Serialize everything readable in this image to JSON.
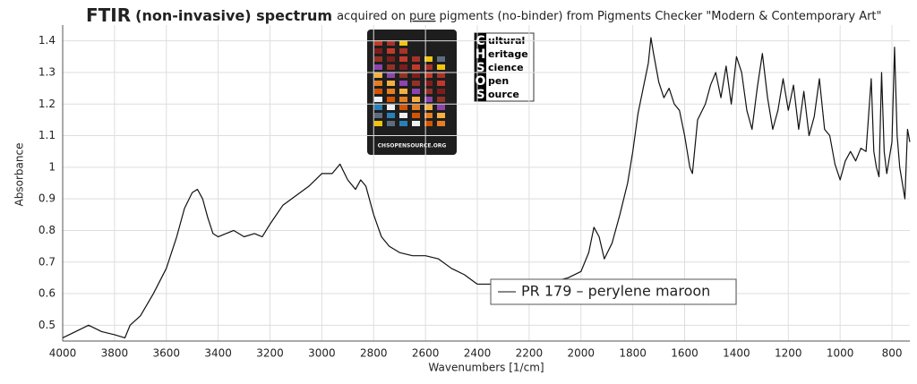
{
  "chart_data": {
    "type": "line",
    "title": [
      "FTIR",
      "(non-invasive) spectrum",
      "acquired on",
      "pure",
      "pigments (no-binder) from Pigments Checker \"Modern & Contemporary Art\""
    ],
    "xlabel": "Wavenumbers [1/cm]",
    "ylabel": "Absorbance",
    "xlim": [
      4000,
      731
    ],
    "ylim": [
      0.45,
      1.45
    ],
    "xticks": [
      4000,
      3800,
      3600,
      3400,
      3200,
      3000,
      2800,
      2600,
      2400,
      2200,
      2000,
      1800,
      1600,
      1400,
      1200,
      1000,
      800
    ],
    "yticks": [
      0.5,
      0.6,
      0.7,
      0.8,
      0.9,
      1,
      1.1,
      1.2,
      1.3,
      1.4
    ],
    "grid": true,
    "legend_position": "lower right",
    "logo": {
      "card": "CHSOPENSOURCE.ORG",
      "letters": [
        "C",
        "H",
        "S",
        "O",
        "S"
      ],
      "words": [
        "ultural",
        "eritage",
        "cience",
        "pen",
        "ource"
      ]
    },
    "series": [
      {
        "name": "PR 179 – perylene maroon",
        "color": "#111111",
        "x": [
          4000,
          3950,
          3900,
          3850,
          3800,
          3760,
          3740,
          3700,
          3650,
          3600,
          3560,
          3530,
          3500,
          3480,
          3460,
          3440,
          3420,
          3400,
          3370,
          3340,
          3300,
          3260,
          3230,
          3200,
          3150,
          3100,
          3050,
          3000,
          2960,
          2930,
          2900,
          2870,
          2850,
          2830,
          2800,
          2770,
          2740,
          2700,
          2650,
          2600,
          2550,
          2500,
          2450,
          2400,
          2350,
          2300,
          2250,
          2200,
          2150,
          2100,
          2050,
          2000,
          1970,
          1950,
          1930,
          1910,
          1880,
          1850,
          1820,
          1800,
          1780,
          1760,
          1740,
          1730,
          1720,
          1700,
          1680,
          1660,
          1640,
          1620,
          1600,
          1580,
          1570,
          1550,
          1520,
          1500,
          1480,
          1460,
          1440,
          1420,
          1400,
          1380,
          1360,
          1340,
          1320,
          1300,
          1280,
          1260,
          1240,
          1220,
          1200,
          1180,
          1160,
          1140,
          1120,
          1100,
          1080,
          1060,
          1040,
          1020,
          1000,
          980,
          960,
          940,
          920,
          900,
          880,
          870,
          860,
          850,
          840,
          830,
          820,
          800,
          790,
          780,
          770,
          760,
          750,
          740,
          731
        ],
        "values": [
          0.46,
          0.48,
          0.5,
          0.48,
          0.47,
          0.46,
          0.5,
          0.53,
          0.6,
          0.68,
          0.78,
          0.87,
          0.92,
          0.93,
          0.9,
          0.84,
          0.79,
          0.78,
          0.79,
          0.8,
          0.78,
          0.79,
          0.78,
          0.82,
          0.88,
          0.91,
          0.94,
          0.98,
          0.98,
          1.01,
          0.96,
          0.93,
          0.96,
          0.94,
          0.85,
          0.78,
          0.75,
          0.73,
          0.72,
          0.72,
          0.71,
          0.68,
          0.66,
          0.63,
          0.63,
          0.62,
          0.61,
          0.6,
          0.63,
          0.64,
          0.65,
          0.67,
          0.73,
          0.81,
          0.78,
          0.71,
          0.76,
          0.85,
          0.95,
          1.05,
          1.17,
          1.25,
          1.33,
          1.41,
          1.36,
          1.27,
          1.22,
          1.25,
          1.2,
          1.18,
          1.1,
          1.0,
          0.98,
          1.15,
          1.2,
          1.26,
          1.3,
          1.22,
          1.32,
          1.2,
          1.35,
          1.3,
          1.18,
          1.12,
          1.25,
          1.36,
          1.22,
          1.12,
          1.18,
          1.28,
          1.18,
          1.26,
          1.12,
          1.24,
          1.1,
          1.16,
          1.28,
          1.12,
          1.1,
          1.01,
          0.96,
          1.02,
          1.05,
          1.02,
          1.06,
          1.05,
          1.28,
          1.05,
          1.0,
          0.97,
          1.3,
          1.05,
          0.98,
          1.08,
          1.38,
          1.1,
          1.0,
          0.95,
          0.9,
          1.12,
          1.08
        ]
      }
    ]
  }
}
